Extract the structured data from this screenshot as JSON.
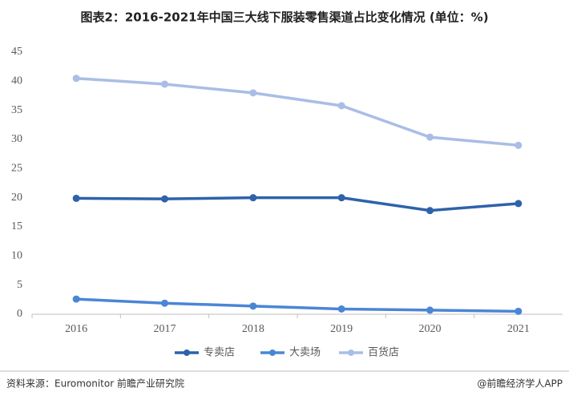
{
  "chart_data": {
    "type": "line",
    "title": "图表2：2016-2021年中国三大线下服装零售渠道占比变化情况 (单位：%)",
    "categories": [
      "2016",
      "2017",
      "2018",
      "2019",
      "2020",
      "2021"
    ],
    "series": [
      {
        "name": "专卖店",
        "color": "#2e62ab",
        "values": [
          19.9,
          19.8,
          20.0,
          20.0,
          17.8,
          19.0
        ]
      },
      {
        "name": "大卖场",
        "color": "#4a86d6",
        "values": [
          2.6,
          1.9,
          1.4,
          0.9,
          0.7,
          0.5
        ]
      },
      {
        "name": "百货店",
        "color": "#a9bde6",
        "values": [
          40.5,
          39.5,
          38.0,
          35.8,
          30.4,
          29.0
        ]
      }
    ],
    "ylim": [
      0,
      45
    ],
    "yticks": [
      0,
      5,
      10,
      15,
      20,
      25,
      30,
      35,
      40,
      45
    ],
    "grid": false,
    "legend": "bottom",
    "source": "资料来源：Euromonitor 前瞻产业研究院",
    "credit": "@前瞻经济学人APP"
  }
}
